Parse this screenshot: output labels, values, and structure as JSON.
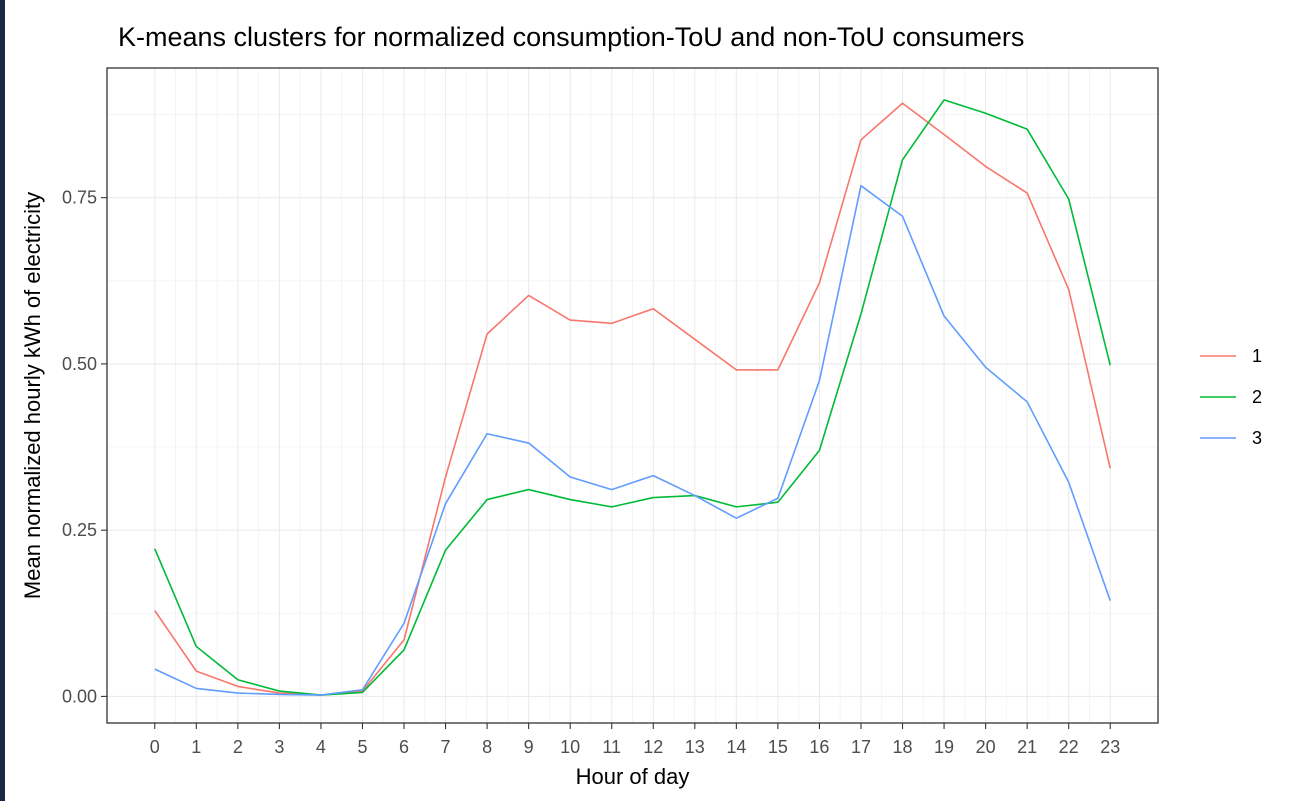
{
  "chart_data": {
    "type": "line",
    "title": "K-means clusters for normalized consumption-ToU and non-ToU consumers",
    "xlabel": "Hour of day",
    "ylabel": "Mean normalized hourly kWh of electricity",
    "x": [
      0,
      1,
      2,
      3,
      4,
      5,
      6,
      7,
      8,
      9,
      10,
      11,
      12,
      13,
      14,
      15,
      16,
      17,
      18,
      19,
      20,
      21,
      22,
      23
    ],
    "x_tick_labels": [
      "0",
      "1",
      "2",
      "3",
      "4",
      "5",
      "6",
      "7",
      "8",
      "9",
      "10",
      "11",
      "12",
      "13",
      "14",
      "15",
      "16",
      "17",
      "18",
      "19",
      "20",
      "21",
      "22",
      "23"
    ],
    "y_ticks": [
      0.0,
      0.25,
      0.5,
      0.75
    ],
    "y_tick_labels": [
      "0.00",
      "0.25",
      "0.50",
      "0.75"
    ],
    "xlim": [
      -1.15,
      24.15
    ],
    "ylim": [
      -0.04,
      0.945
    ],
    "grid": true,
    "legend_position": "right",
    "series": [
      {
        "name": "1",
        "color": "#F8766D",
        "values": [
          0.129,
          0.038,
          0.015,
          0.005,
          0.002,
          0.008,
          0.085,
          0.33,
          0.545,
          0.603,
          0.566,
          0.561,
          0.583,
          0.537,
          0.491,
          0.491,
          0.622,
          0.837,
          0.892,
          0.845,
          0.797,
          0.757,
          0.612,
          0.343
        ]
      },
      {
        "name": "2",
        "color": "#00BA38",
        "values": [
          0.222,
          0.075,
          0.025,
          0.008,
          0.002,
          0.006,
          0.07,
          0.22,
          0.296,
          0.311,
          0.296,
          0.285,
          0.299,
          0.302,
          0.285,
          0.292,
          0.37,
          0.575,
          0.807,
          0.897,
          0.877,
          0.853,
          0.748,
          0.498
        ]
      },
      {
        "name": "3",
        "color": "#619CFF",
        "values": [
          0.041,
          0.012,
          0.005,
          0.003,
          0.002,
          0.01,
          0.11,
          0.29,
          0.395,
          0.381,
          0.33,
          0.311,
          0.332,
          0.302,
          0.268,
          0.298,
          0.475,
          0.768,
          0.722,
          0.572,
          0.495,
          0.443,
          0.322,
          0.144
        ]
      }
    ]
  }
}
